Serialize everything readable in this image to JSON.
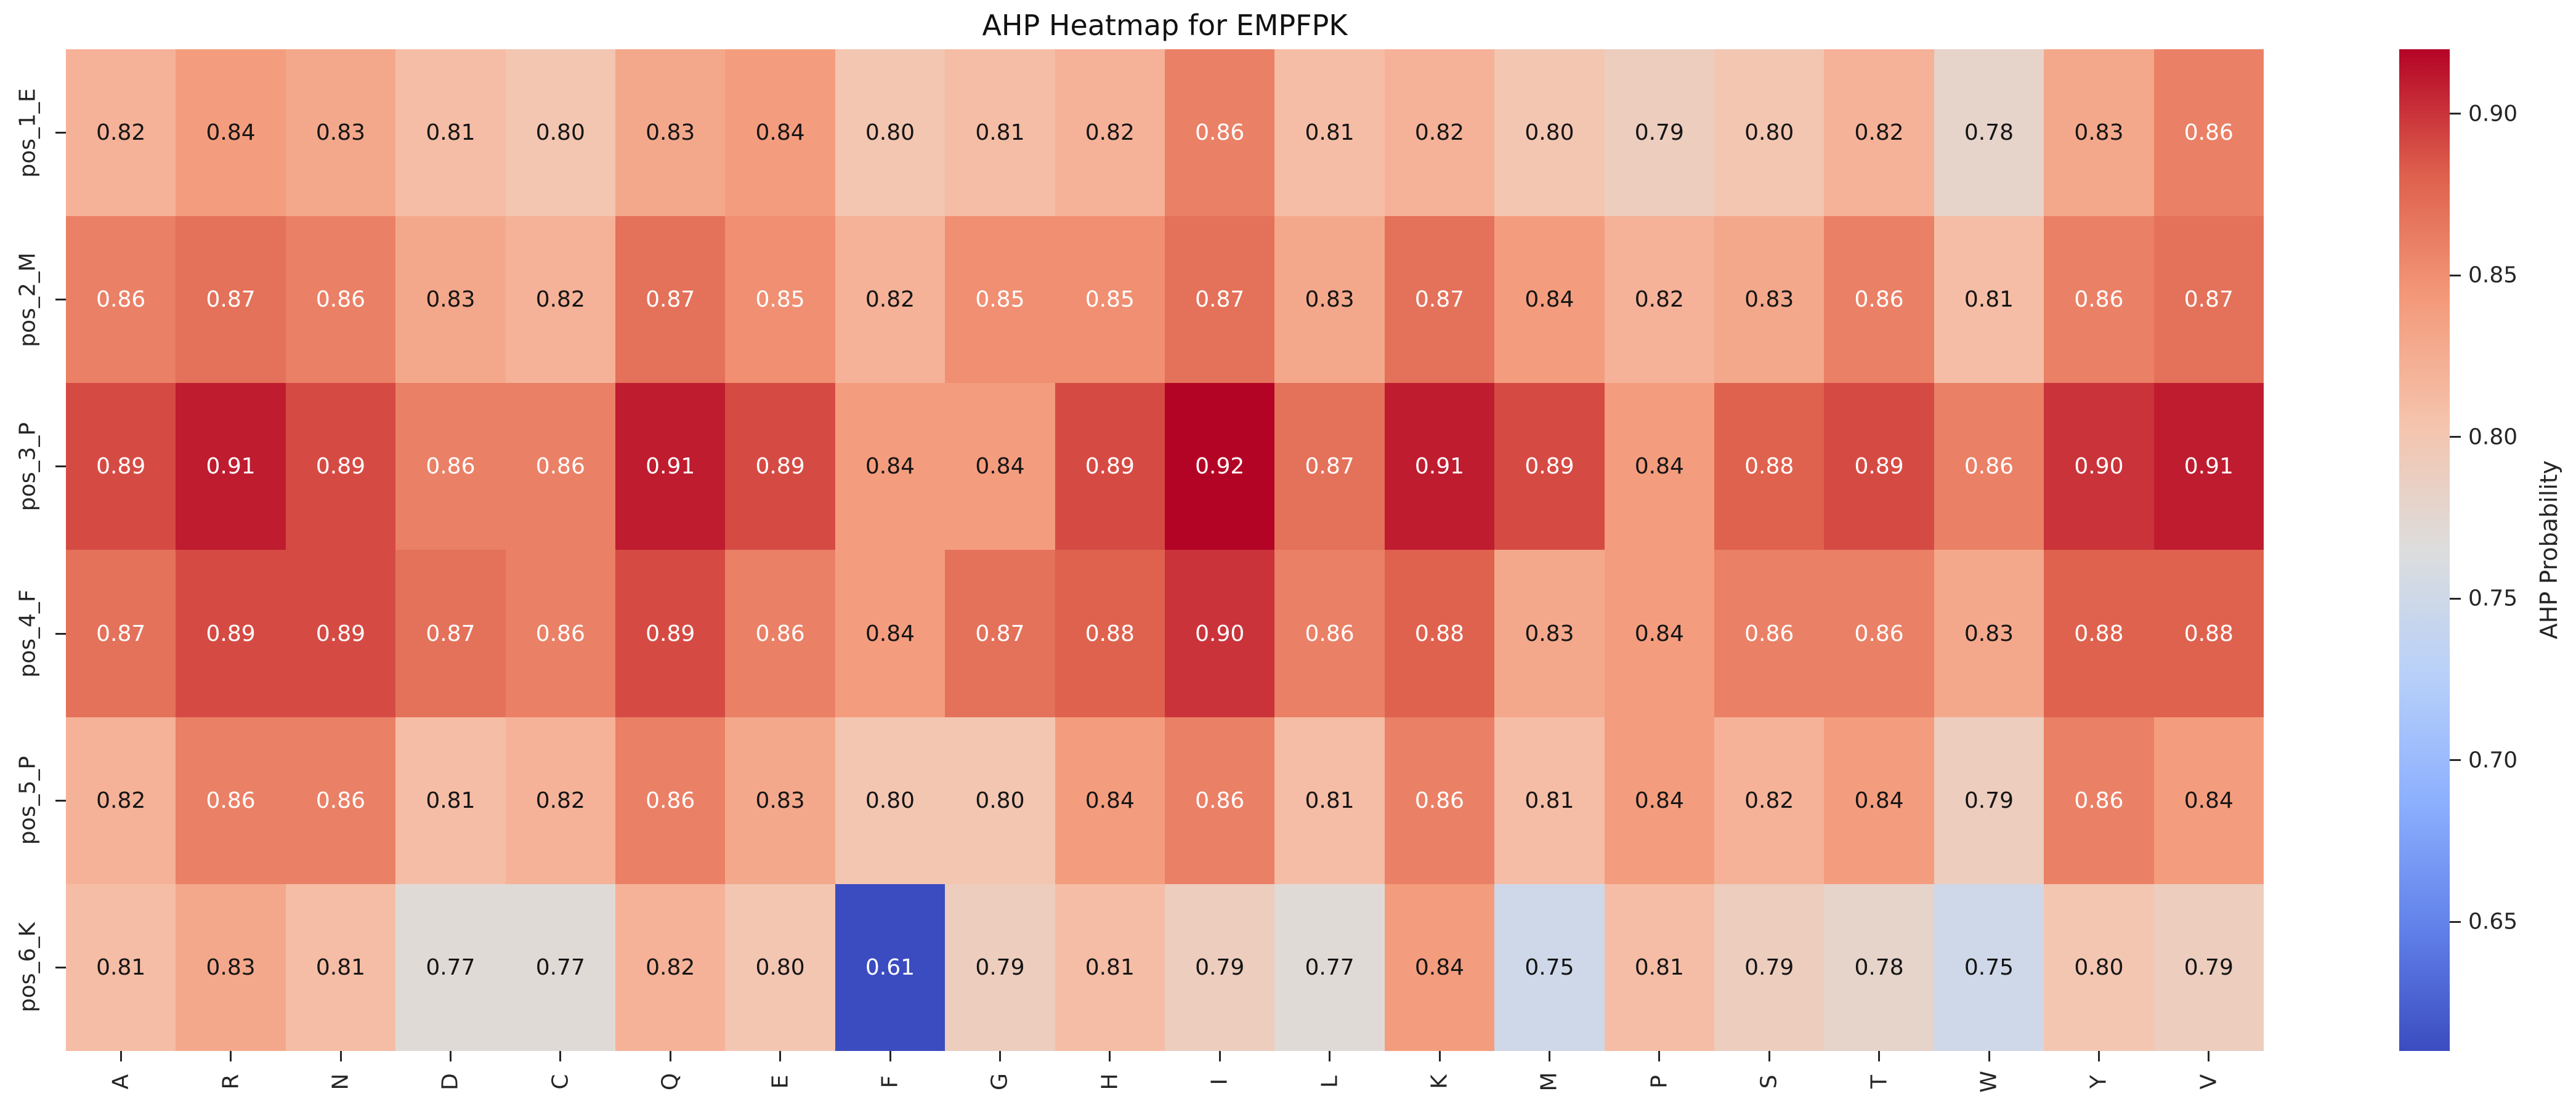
{
  "title": "AHP Heatmap for EMPFPK",
  "chart_data": {
    "type": "heatmap",
    "title": "AHP Heatmap for EMPFPK",
    "rows": [
      "pos_1_E",
      "pos_2_M",
      "pos_3_P",
      "pos_4_F",
      "pos_5_P",
      "pos_6_K"
    ],
    "columns": [
      "A",
      "R",
      "N",
      "D",
      "C",
      "Q",
      "E",
      "F",
      "G",
      "H",
      "I",
      "L",
      "K",
      "M",
      "P",
      "S",
      "T",
      "W",
      "Y",
      "V"
    ],
    "values": [
      [
        0.82,
        0.84,
        0.83,
        0.81,
        0.8,
        0.83,
        0.84,
        0.8,
        0.81,
        0.82,
        0.86,
        0.81,
        0.82,
        0.8,
        0.79,
        0.8,
        0.82,
        0.78,
        0.83,
        0.86
      ],
      [
        0.86,
        0.87,
        0.86,
        0.83,
        0.82,
        0.87,
        0.85,
        0.82,
        0.85,
        0.85,
        0.87,
        0.83,
        0.87,
        0.84,
        0.82,
        0.83,
        0.86,
        0.81,
        0.86,
        0.87
      ],
      [
        0.89,
        0.91,
        0.89,
        0.86,
        0.86,
        0.91,
        0.89,
        0.84,
        0.84,
        0.89,
        0.92,
        0.87,
        0.91,
        0.89,
        0.84,
        0.88,
        0.89,
        0.86,
        0.9,
        0.91
      ],
      [
        0.87,
        0.89,
        0.89,
        0.87,
        0.86,
        0.89,
        0.86,
        0.84,
        0.87,
        0.88,
        0.9,
        0.86,
        0.88,
        0.83,
        0.84,
        0.86,
        0.86,
        0.83,
        0.88,
        0.88
      ],
      [
        0.82,
        0.86,
        0.86,
        0.81,
        0.82,
        0.86,
        0.83,
        0.8,
        0.8,
        0.84,
        0.86,
        0.81,
        0.86,
        0.81,
        0.84,
        0.82,
        0.84,
        0.79,
        0.86,
        0.84
      ],
      [
        0.81,
        0.83,
        0.81,
        0.77,
        0.77,
        0.82,
        0.8,
        0.61,
        0.79,
        0.81,
        0.79,
        0.77,
        0.84,
        0.75,
        0.81,
        0.79,
        0.78,
        0.75,
        0.8,
        0.79
      ]
    ],
    "value_precision": 2,
    "vmin": 0.61,
    "vmax": 0.92,
    "colorbar": {
      "label": "AHP Probability",
      "ticks": [
        0.65,
        0.7,
        0.75,
        0.8,
        0.85,
        0.9
      ]
    },
    "colormap": {
      "name": "coolwarm",
      "stops": [
        [
          0.0,
          "#3b4cc0"
        ],
        [
          0.125,
          "#6282ea"
        ],
        [
          0.25,
          "#8db0fe"
        ],
        [
          0.375,
          "#b8d0f9"
        ],
        [
          0.5,
          "#dddddd"
        ],
        [
          0.625,
          "#f5c4ad"
        ],
        [
          0.75,
          "#f49a7b"
        ],
        [
          0.875,
          "#de604d"
        ],
        [
          1.0,
          "#b40426"
        ]
      ]
    },
    "annotation_text_colors": {
      "light": "#ffffff",
      "dark": "#151515"
    },
    "axis_text_color": "#262626",
    "background_color": "#ffffff",
    "legend_position": "right",
    "grid": false
  }
}
